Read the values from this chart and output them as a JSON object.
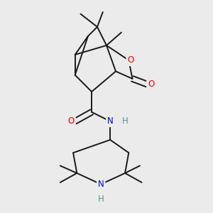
{
  "background_color": "#ebebeb",
  "bond_color": "#1a1a1a",
  "atom_colors": {
    "O": "#ff0000",
    "N": "#0000ff",
    "H": "#4a9a8a",
    "C": "#1a1a1a"
  },
  "figsize": [
    3.0,
    3.0
  ],
  "dpi": 100
}
